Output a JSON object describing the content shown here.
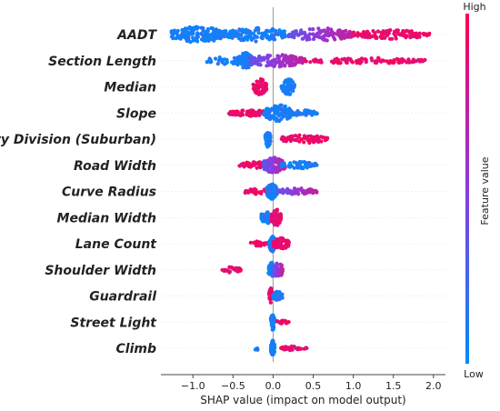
{
  "chart_data": {
    "type": "scatter",
    "subtype": "shap-beeswarm",
    "xlabel": "SHAP value (impact on model output)",
    "xlim": [
      -1.4,
      2.15
    ],
    "xticks": [
      -1.0,
      -0.5,
      0.0,
      0.5,
      1.0,
      1.5,
      2.0
    ],
    "xtick_labels": [
      "−1.0",
      "−0.5",
      "0.0",
      "0.5",
      "1.0",
      "1.5",
      "2.0"
    ],
    "colorbar": {
      "label": "Feature value",
      "high_label": "High",
      "low_label": "Low",
      "high_color": "#ff0052",
      "low_color": "#008bfb"
    },
    "grid": false,
    "features": [
      {
        "name": "AADT",
        "clusters": [
          {
            "x": [
              -1.27,
              -0.6
            ],
            "value": "low",
            "spread": 1.0,
            "n": 180
          },
          {
            "x": [
              -0.6,
              0.2
            ],
            "value": "low",
            "spread": 0.85,
            "n": 120
          },
          {
            "x": [
              0.2,
              1.0
            ],
            "value": "mid",
            "spread": 0.8,
            "n": 120
          },
          {
            "x": [
              1.0,
              1.95
            ],
            "value": "high",
            "spread": 0.55,
            "n": 110
          }
        ]
      },
      {
        "name": "Section Length",
        "clusters": [
          {
            "x": [
              -0.85,
              -0.3
            ],
            "value": "low",
            "spread": 0.45,
            "n": 40
          },
          {
            "x": [
              -0.45,
              -0.25
            ],
            "value": "low",
            "spread": 1.0,
            "n": 60
          },
          {
            "x": [
              -0.3,
              0.4
            ],
            "value": "mid",
            "spread": 0.75,
            "n": 130
          },
          {
            "x": [
              0.4,
              1.9
            ],
            "value": "high",
            "spread": 0.35,
            "n": 110
          }
        ]
      },
      {
        "name": "Median",
        "clusters": [
          {
            "x": [
              -0.25,
              -0.08
            ],
            "value": "high",
            "spread": 1.0,
            "n": 60
          },
          {
            "x": [
              0.1,
              0.27
            ],
            "value": "low",
            "spread": 1.0,
            "n": 60
          }
        ]
      },
      {
        "name": "Slope",
        "clusters": [
          {
            "x": [
              -0.55,
              -0.05
            ],
            "value": "high",
            "spread": 0.4,
            "n": 70
          },
          {
            "x": [
              -0.12,
              0.25
            ],
            "value": "low",
            "spread": 1.0,
            "n": 110
          },
          {
            "x": [
              0.2,
              0.55
            ],
            "value": "low",
            "spread": 0.35,
            "n": 40
          }
        ]
      },
      {
        "name": "City Division (Suburban)",
        "clusters": [
          {
            "x": [
              -0.1,
              -0.03
            ],
            "value": "low",
            "spread": 1.0,
            "n": 50
          },
          {
            "x": [
              0.1,
              0.68
            ],
            "value": "high",
            "spread": 0.5,
            "n": 70
          }
        ]
      },
      {
        "name": "Road Width",
        "clusters": [
          {
            "x": [
              -0.42,
              -0.05
            ],
            "value": "high",
            "spread": 0.45,
            "n": 50
          },
          {
            "x": [
              -0.12,
              0.15
            ],
            "value": "mid",
            "spread": 1.0,
            "n": 120
          },
          {
            "x": [
              0.1,
              0.55
            ],
            "value": "low",
            "spread": 0.45,
            "n": 50
          }
        ]
      },
      {
        "name": "Curve Radius",
        "clusters": [
          {
            "x": [
              -0.35,
              -0.05
            ],
            "value": "high",
            "spread": 0.35,
            "n": 40
          },
          {
            "x": [
              -0.08,
              0.05
            ],
            "value": "low",
            "spread": 1.0,
            "n": 80
          },
          {
            "x": [
              0.05,
              0.55
            ],
            "value": "mid",
            "spread": 0.4,
            "n": 60
          }
        ]
      },
      {
        "name": "Median Width",
        "clusters": [
          {
            "x": [
              -0.15,
              -0.02
            ],
            "value": "low",
            "spread": 0.8,
            "n": 60
          },
          {
            "x": [
              -0.02,
              0.1
            ],
            "value": "high",
            "spread": 1.0,
            "n": 70
          }
        ]
      },
      {
        "name": "Lane Count",
        "clusters": [
          {
            "x": [
              -0.3,
              -0.05
            ],
            "value": "high",
            "spread": 0.3,
            "n": 25
          },
          {
            "x": [
              -0.05,
              0.03
            ],
            "value": "low",
            "spread": 1.0,
            "n": 70
          },
          {
            "x": [
              0.0,
              0.2
            ],
            "value": "high",
            "spread": 0.7,
            "n": 60
          }
        ]
      },
      {
        "name": "Shoulder Width",
        "clusters": [
          {
            "x": [
              -0.65,
              -0.4
            ],
            "value": "high",
            "spread": 0.35,
            "n": 35
          },
          {
            "x": [
              -0.06,
              0.02
            ],
            "value": "low",
            "spread": 0.9,
            "n": 50
          },
          {
            "x": [
              0.0,
              0.12
            ],
            "value": "mid",
            "spread": 1.0,
            "n": 60
          }
        ]
      },
      {
        "name": "Guardrail",
        "clusters": [
          {
            "x": [
              -0.05,
              -0.01
            ],
            "value": "high",
            "spread": 1.0,
            "n": 45
          },
          {
            "x": [
              0.0,
              0.12
            ],
            "value": "low",
            "spread": 0.6,
            "n": 40
          }
        ]
      },
      {
        "name": "Street Light",
        "clusters": [
          {
            "x": [
              -0.03,
              0.02
            ],
            "value": "low",
            "spread": 1.0,
            "n": 40
          },
          {
            "x": [
              0.05,
              0.2
            ],
            "value": "high",
            "spread": 0.25,
            "n": 25
          }
        ]
      },
      {
        "name": "Climb",
        "clusters": [
          {
            "x": [
              -0.25,
              -0.18
            ],
            "value": "low",
            "spread": 0.3,
            "n": 5
          },
          {
            "x": [
              -0.03,
              0.02
            ],
            "value": "low",
            "spread": 1.0,
            "n": 40
          },
          {
            "x": [
              0.08,
              0.35
            ],
            "value": "high",
            "spread": 0.25,
            "n": 30
          },
          {
            "x": [
              0.38,
              0.42
            ],
            "value": "high",
            "spread": 0.2,
            "n": 4
          }
        ]
      }
    ]
  }
}
